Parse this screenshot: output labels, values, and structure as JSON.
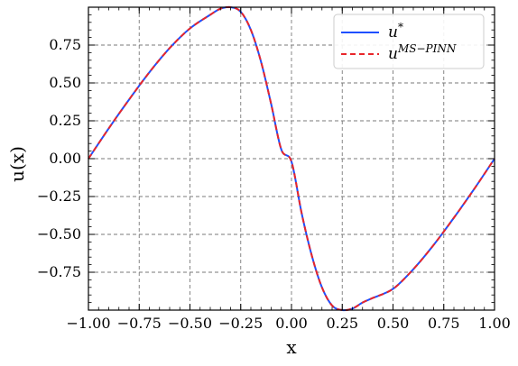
{
  "chart_data": {
    "type": "line",
    "title": "",
    "xlabel": "x",
    "ylabel": "u(x)",
    "xlim": [
      -1.0,
      1.0
    ],
    "ylim": [
      -1.0,
      1.0
    ],
    "grid": true,
    "legend_position": "top-right",
    "x_ticks": [
      -1.0,
      -0.75,
      -0.5,
      -0.25,
      0.0,
      0.25,
      0.5,
      0.75,
      1.0
    ],
    "x_tick_labels": [
      "−1.00",
      "−0.75",
      "−0.50",
      "−0.25",
      "0.00",
      "0.25",
      "0.50",
      "0.75",
      "1.00"
    ],
    "y_ticks": [
      -0.75,
      -0.5,
      -0.25,
      0.0,
      0.25,
      0.5,
      0.75
    ],
    "y_tick_labels": [
      "−0.75",
      "−0.50",
      "−0.25",
      "0.00",
      "0.25",
      "0.50",
      "0.75"
    ],
    "x": [
      -1.0,
      -0.9,
      -0.8,
      -0.7,
      -0.6,
      -0.5,
      -0.4,
      -0.35,
      -0.3,
      -0.25,
      -0.2,
      -0.15,
      -0.1,
      -0.05,
      0.0,
      0.05,
      0.1,
      0.15,
      0.2,
      0.25,
      0.3,
      0.35,
      0.4,
      0.5,
      0.6,
      0.7,
      0.8,
      0.9,
      1.0
    ],
    "series": [
      {
        "name": "u*",
        "legend_base": "u",
        "legend_sup": "*",
        "color": "#1f4fff",
        "style": "solid",
        "values": [
          0.0,
          0.2,
          0.39,
          0.57,
          0.73,
          0.86,
          0.95,
          0.99,
          1.0,
          0.97,
          0.85,
          0.64,
          0.36,
          0.06,
          -0.02,
          -0.36,
          -0.64,
          -0.85,
          -0.97,
          -1.0,
          -0.99,
          -0.95,
          -0.92,
          -0.86,
          -0.73,
          -0.57,
          -0.39,
          -0.2,
          0.0
        ]
      },
      {
        "name": "u^{MS-PINN}",
        "legend_base": "u",
        "legend_sup": "MS−PINN",
        "color": "#e8262a",
        "style": "dashed",
        "values": [
          0.0,
          0.2,
          0.39,
          0.57,
          0.73,
          0.86,
          0.95,
          0.99,
          1.0,
          0.97,
          0.85,
          0.64,
          0.36,
          0.06,
          -0.02,
          -0.36,
          -0.64,
          -0.85,
          -0.97,
          -1.0,
          -0.99,
          -0.95,
          -0.92,
          -0.86,
          -0.73,
          -0.57,
          -0.39,
          -0.2,
          0.0
        ]
      }
    ]
  }
}
